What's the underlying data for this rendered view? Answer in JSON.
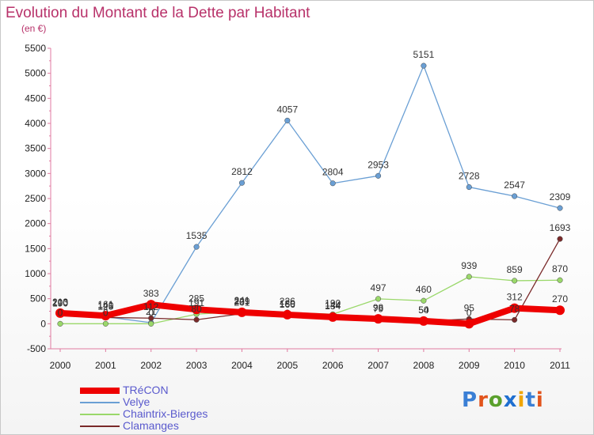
{
  "title": "Evolution du Montant de la Dette par Habitant",
  "subtitle": "(en €)",
  "brand": {
    "text": "Proxiti",
    "letter_colors": [
      "#3a7fd5",
      "#e2541c",
      "#5aa02c",
      "#1f6fd0",
      "#f0a500",
      "#3a7fd5",
      "#e2541c"
    ]
  },
  "chart_data": {
    "type": "line",
    "title": "Evolution du Montant de la Dette par Habitant",
    "ylabel": "(en €)",
    "xlabel": "",
    "categories": [
      "2000",
      "2001",
      "2002",
      "2003",
      "2004",
      "2005",
      "2006",
      "2007",
      "2008",
      "2009",
      "2010",
      "2011"
    ],
    "yticks": [
      "-500",
      "0",
      "500",
      "1000",
      "1500",
      "2000",
      "2500",
      "3000",
      "3500",
      "4000",
      "4500",
      "5000",
      "5500"
    ],
    "ylim": [
      -500,
      5500
    ],
    "grid": false,
    "legend_position": "bottom-left",
    "series": [
      {
        "name": "TRéCON",
        "color": "#ee0000",
        "values": [
          213,
          161,
          383,
          285,
          229,
          180,
          134,
          98,
          54,
          0,
          312,
          270
        ],
        "labels": [
          "213",
          "161",
          "383",
          "285",
          "229",
          "180",
          "134",
          "98",
          "54",
          "0",
          "312",
          "270"
        ]
      },
      {
        "name": "Velye",
        "color": "#6a9fd4",
        "values": [
          200,
          140,
          21,
          1535,
          2812,
          4057,
          2804,
          2953,
          5151,
          2728,
          2547,
          2309
        ],
        "labels": [
          "200",
          "140",
          "21",
          "1535",
          "2812",
          "4057",
          "2804",
          "2953",
          "5151",
          "2728",
          "2547",
          "2309"
        ]
      },
      {
        "name": "Chaintrix-Bierges",
        "color": "#9ad86a",
        "values": [
          0,
          0,
          0,
          191,
          241,
          226,
          190,
          497,
          460,
          939,
          859,
          870
        ],
        "labels": [
          "0",
          "0",
          "0",
          "191",
          "241",
          "226",
          "190",
          "497",
          "460",
          "939",
          "859",
          "870"
        ]
      },
      {
        "name": "Clamanges",
        "color": "#7a2a2a",
        "values": [
          190,
          125,
          112,
          80,
          201,
          166,
          144,
          79,
          50,
          95,
          78,
          1693
        ],
        "labels": [
          "190",
          "125",
          "112",
          "80",
          "201",
          "166",
          "144",
          "79",
          "50",
          "95",
          "78",
          "1693"
        ]
      }
    ]
  }
}
